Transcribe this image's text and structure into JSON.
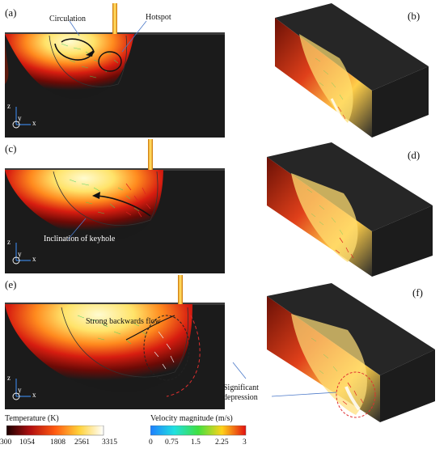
{
  "figure": {
    "panel_labels": [
      "(a)",
      "(b)",
      "(c)",
      "(d)",
      "(e)",
      "(f)"
    ],
    "annotations": {
      "circulation": "Circulation",
      "hotspot": "Hotspot",
      "inclination": "Inclination of keyhole",
      "backwards": "Strong backwards flow",
      "depression_line1": "Significant",
      "depression_line2": "depression"
    },
    "axes": {
      "z": "z",
      "y": "y",
      "x": "x"
    },
    "temperature_bar": {
      "title": "Temperature (K)",
      "ticks": [
        "300",
        "1054",
        "1808",
        "2561",
        "3315"
      ]
    },
    "velocity_bar": {
      "title": "Velocity magnitude (m/s)",
      "ticks": [
        "0",
        "0.75",
        "1.5",
        "2.25",
        "3"
      ]
    }
  }
}
